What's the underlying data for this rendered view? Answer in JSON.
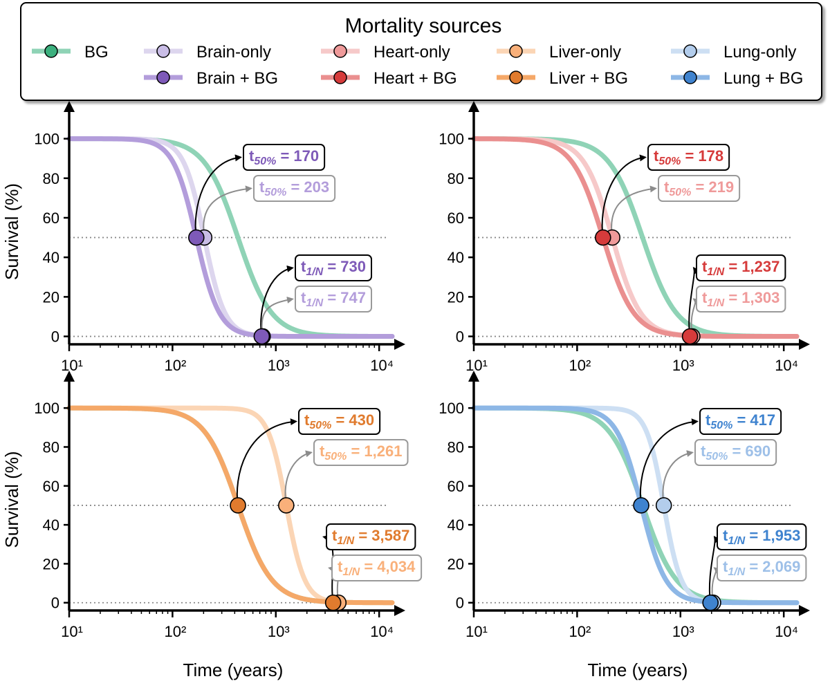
{
  "legend": {
    "title": "Mortality sources",
    "entries": [
      {
        "name": "BG",
        "color": "#8fd3b6",
        "marker": "#3cb07e"
      },
      {
        "name": "Brain-only",
        "color": "#ddd6ee",
        "marker": "#c9bde6"
      },
      {
        "name": "Brain + BG",
        "color": "#b39ddb",
        "marker": "#7e5ab8"
      },
      {
        "name": "Heart-only",
        "color": "#f6c9c9",
        "marker": "#ef9a9a"
      },
      {
        "name": "Heart + BG",
        "color": "#ea8f8f",
        "marker": "#d63b3b"
      },
      {
        "name": "Liver-only",
        "color": "#fbd5b5",
        "marker": "#f9b07a"
      },
      {
        "name": "Liver + BG",
        "color": "#f5a868",
        "marker": "#e07b2e"
      },
      {
        "name": "Lung-only",
        "color": "#cddff3",
        "marker": "#b3cdec"
      },
      {
        "name": "Lung + BG",
        "color": "#8db7e6",
        "marker": "#3f83cf"
      }
    ]
  },
  "chart_data": [
    {
      "type": "line",
      "xscale": "log",
      "xlim": [
        10,
        14000
      ],
      "ylim": [
        -4,
        110
      ],
      "xticks": [
        "10¹",
        "10²",
        "10³",
        "10⁴"
      ],
      "yticks": [
        "0",
        "20",
        "40",
        "60",
        "80",
        "100"
      ],
      "xlabel": "",
      "ylabel": "Survival (%)",
      "refline_y": [
        50,
        0
      ],
      "series": [
        {
          "name": "BG",
          "color": "#8fd3b6",
          "t50": 430,
          "tend": 3587
        },
        {
          "name": "Brain-only",
          "color": "#ddd6ee",
          "t50": 203,
          "tend": 747
        },
        {
          "name": "Brain + BG",
          "color": "#b39ddb",
          "t50": 170,
          "tend": 730
        }
      ],
      "annotations": [
        {
          "label": "t",
          "sub": "50%",
          "value": "170",
          "x": 170,
          "y": 50,
          "text_color": "#7e5ab8",
          "text_opacity": 1,
          "border": "#000000",
          "arrow": "#000000",
          "marker": "#7e5ab8"
        },
        {
          "label": "t",
          "sub": "50%",
          "value": "203",
          "x": 203,
          "y": 50,
          "text_color": "#b39ddb",
          "text_opacity": 1,
          "border": "#999999",
          "arrow": "#8c8c8c",
          "marker": "#c9bde6"
        },
        {
          "label": "t",
          "sub": "1/N",
          "value": "730",
          "x": 730,
          "y": 0,
          "text_color": "#7e5ab8",
          "text_opacity": 1,
          "border": "#000000",
          "arrow": "#000000",
          "marker": "#7e5ab8"
        },
        {
          "label": "t",
          "sub": "1/N",
          "value": "747",
          "x": 747,
          "y": 0,
          "text_color": "#b39ddb",
          "text_opacity": 1,
          "border": "#999999",
          "arrow": "#8c8c8c",
          "marker": "#c9bde6"
        }
      ]
    },
    {
      "type": "line",
      "xscale": "log",
      "xlim": [
        10,
        14000
      ],
      "ylim": [
        -4,
        110
      ],
      "xticks": [
        "10¹",
        "10²",
        "10³",
        "10⁴"
      ],
      "yticks": [
        "0",
        "20",
        "40",
        "60",
        "80",
        "100"
      ],
      "xlabel": "",
      "ylabel": "",
      "refline_y": [
        50,
        0
      ],
      "series": [
        {
          "name": "BG",
          "color": "#8fd3b6",
          "t50": 430,
          "tend": 3587
        },
        {
          "name": "Heart-only",
          "color": "#f6c9c9",
          "t50": 219,
          "tend": 1303
        },
        {
          "name": "Heart + BG",
          "color": "#ea8f8f",
          "t50": 178,
          "tend": 1237
        }
      ],
      "annotations": [
        {
          "label": "t",
          "sub": "50%",
          "value": "178",
          "x": 178,
          "y": 50,
          "text_color": "#d63b3b",
          "text_opacity": 1,
          "border": "#000000",
          "arrow": "#000000",
          "marker": "#d63b3b"
        },
        {
          "label": "t",
          "sub": "50%",
          "value": "219",
          "x": 219,
          "y": 50,
          "text_color": "#ef9a9a",
          "text_opacity": 1,
          "border": "#999999",
          "arrow": "#8c8c8c",
          "marker": "#ef9a9a"
        },
        {
          "label": "t",
          "sub": "1/N",
          "value": "1,237",
          "x": 1237,
          "y": 0,
          "text_color": "#d63b3b",
          "text_opacity": 1,
          "border": "#000000",
          "arrow": "#000000",
          "marker": "#d63b3b"
        },
        {
          "label": "t",
          "sub": "1/N",
          "value": "1,303",
          "x": 1303,
          "y": 0,
          "text_color": "#ef9a9a",
          "text_opacity": 1,
          "border": "#999999",
          "arrow": "#8c8c8c",
          "marker": "#ef9a9a"
        }
      ]
    },
    {
      "type": "line",
      "xscale": "log",
      "xlim": [
        10,
        14000
      ],
      "ylim": [
        -4,
        110
      ],
      "xticks": [
        "10¹",
        "10²",
        "10³",
        "10⁴"
      ],
      "yticks": [
        "0",
        "20",
        "40",
        "60",
        "80",
        "100"
      ],
      "xlabel": "Time (years)",
      "ylabel": "Survival (%)",
      "refline_y": [
        50,
        0
      ],
      "series": [
        {
          "name": "BG",
          "color": "#8fd3b6",
          "t50": 430,
          "tend": 3587
        },
        {
          "name": "Liver-only",
          "color": "#fbd5b5",
          "t50": 1261,
          "tend": 4034
        },
        {
          "name": "Liver + BG",
          "color": "#f5a868",
          "t50": 430,
          "tend": 3587
        }
      ],
      "annotations": [
        {
          "label": "t",
          "sub": "50%",
          "value": "430",
          "x": 430,
          "y": 50,
          "text_color": "#e07b2e",
          "text_opacity": 1,
          "border": "#000000",
          "arrow": "#000000",
          "marker": "#e07b2e"
        },
        {
          "label": "t",
          "sub": "50%",
          "value": "1,261",
          "x": 1261,
          "y": 50,
          "text_color": "#f9b07a",
          "text_opacity": 1,
          "border": "#999999",
          "arrow": "#8c8c8c",
          "marker": "#f9b07a"
        },
        {
          "label": "t",
          "sub": "1/N",
          "value": "3,587",
          "x": 3587,
          "y": 0,
          "text_color": "#e07b2e",
          "text_opacity": 1,
          "border": "#000000",
          "arrow": "#000000",
          "marker": "#e07b2e"
        },
        {
          "label": "t",
          "sub": "1/N",
          "value": "4,034",
          "x": 4034,
          "y": 0,
          "text_color": "#f9b07a",
          "text_opacity": 1,
          "border": "#999999",
          "arrow": "#8c8c8c",
          "marker": "#f9b07a"
        }
      ]
    },
    {
      "type": "line",
      "xscale": "log",
      "xlim": [
        10,
        14000
      ],
      "ylim": [
        -4,
        110
      ],
      "xticks": [
        "10¹",
        "10²",
        "10³",
        "10⁴"
      ],
      "yticks": [
        "0",
        "20",
        "40",
        "60",
        "80",
        "100"
      ],
      "xlabel": "Time (years)",
      "ylabel": "",
      "refline_y": [
        50,
        0
      ],
      "series": [
        {
          "name": "BG",
          "color": "#8fd3b6",
          "t50": 430,
          "tend": 3587
        },
        {
          "name": "Lung-only",
          "color": "#cddff3",
          "t50": 690,
          "tend": 2069
        },
        {
          "name": "Lung + BG",
          "color": "#8db7e6",
          "t50": 417,
          "tend": 1953
        }
      ],
      "annotations": [
        {
          "label": "t",
          "sub": "50%",
          "value": "417",
          "x": 417,
          "y": 50,
          "text_color": "#3f83cf",
          "text_opacity": 1,
          "border": "#000000",
          "arrow": "#000000",
          "marker": "#3f83cf"
        },
        {
          "label": "t",
          "sub": "50%",
          "value": "690",
          "x": 690,
          "y": 50,
          "text_color": "#9ec0e8",
          "text_opacity": 1,
          "border": "#999999",
          "arrow": "#8c8c8c",
          "marker": "#b3cdec"
        },
        {
          "label": "t",
          "sub": "1/N",
          "value": "1,953",
          "x": 1953,
          "y": 0,
          "text_color": "#3f83cf",
          "text_opacity": 1,
          "border": "#000000",
          "arrow": "#000000",
          "marker": "#3f83cf"
        },
        {
          "label": "t",
          "sub": "1/N",
          "value": "2,069",
          "x": 2069,
          "y": 0,
          "text_color": "#9ec0e8",
          "text_opacity": 1,
          "border": "#999999",
          "arrow": "#8c8c8c",
          "marker": "#b3cdec"
        }
      ]
    }
  ]
}
